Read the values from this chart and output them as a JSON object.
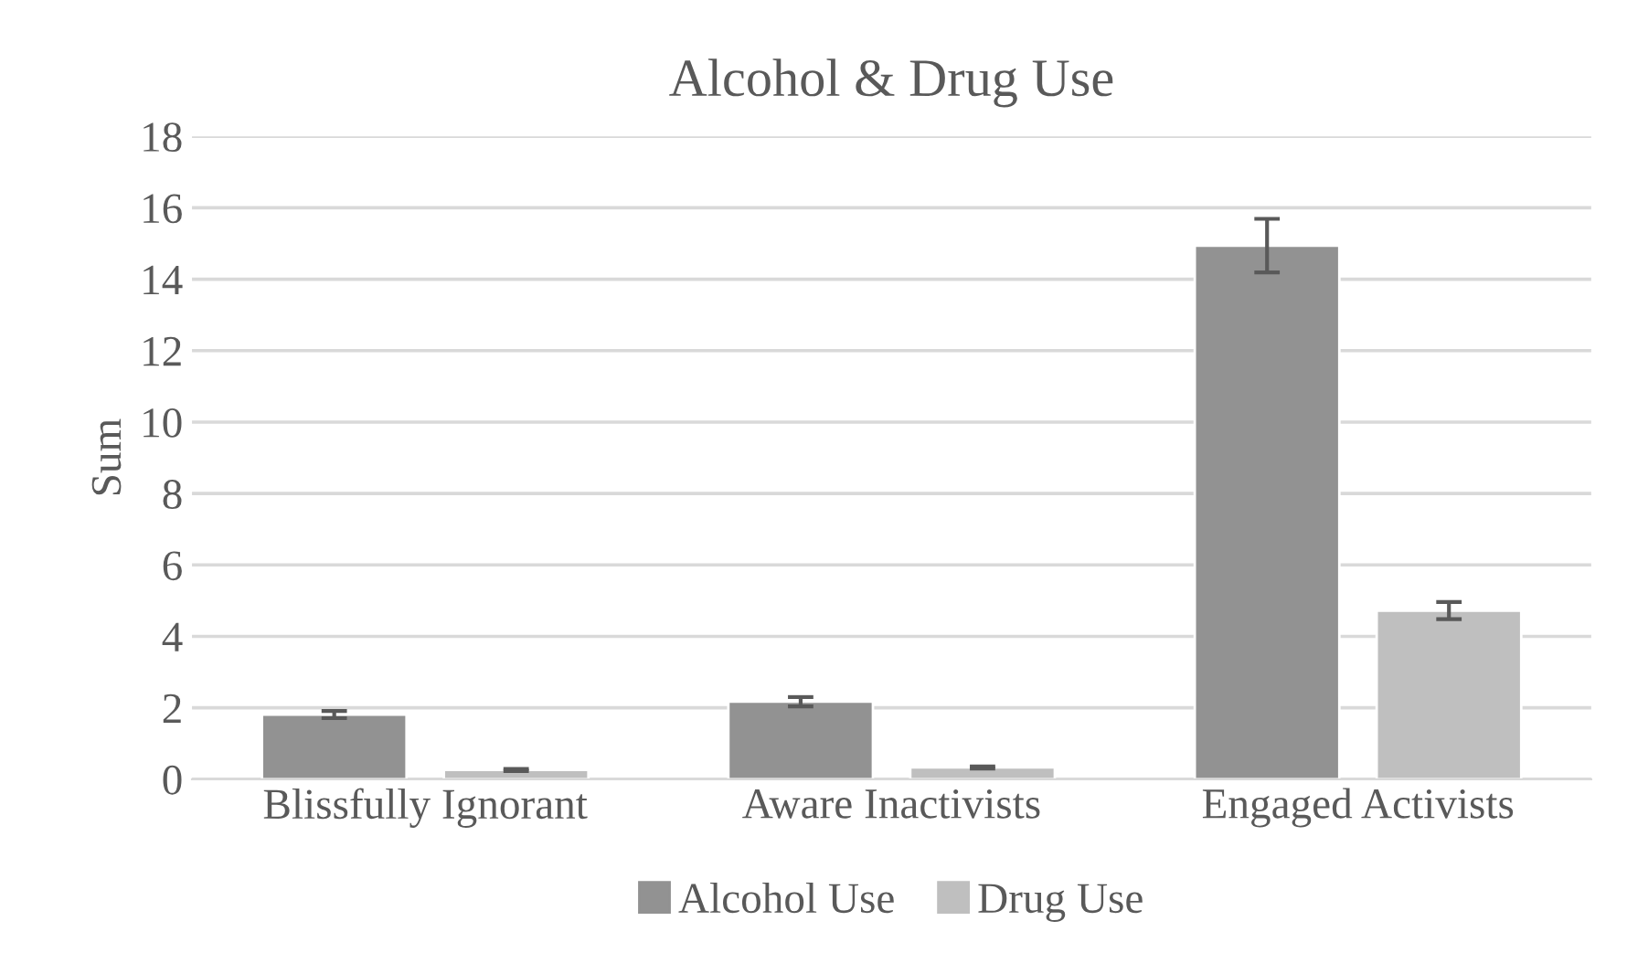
{
  "chart_data": {
    "type": "bar",
    "title": "Alcohol & Drug Use",
    "ylabel": "Sum",
    "categories": [
      "Blissfully Ignorant",
      "Aware Inactivists",
      "Engaged Activists"
    ],
    "series": [
      {
        "name": "Alcohol Use",
        "color": "#929292",
        "values": [
          1.81,
          2.17,
          14.94
        ],
        "errors": [
          0.1,
          0.13,
          0.75
        ]
      },
      {
        "name": "Drug Use",
        "color": "#bfbfbf",
        "values": [
          0.26,
          0.33,
          4.72
        ],
        "errors": [
          0.03,
          0.03,
          0.24
        ]
      }
    ],
    "ylim": [
      0,
      18
    ],
    "yticks": [
      0,
      2,
      4,
      6,
      8,
      10,
      12,
      14,
      16,
      18
    ],
    "grid": "y",
    "legend": "bottom"
  }
}
